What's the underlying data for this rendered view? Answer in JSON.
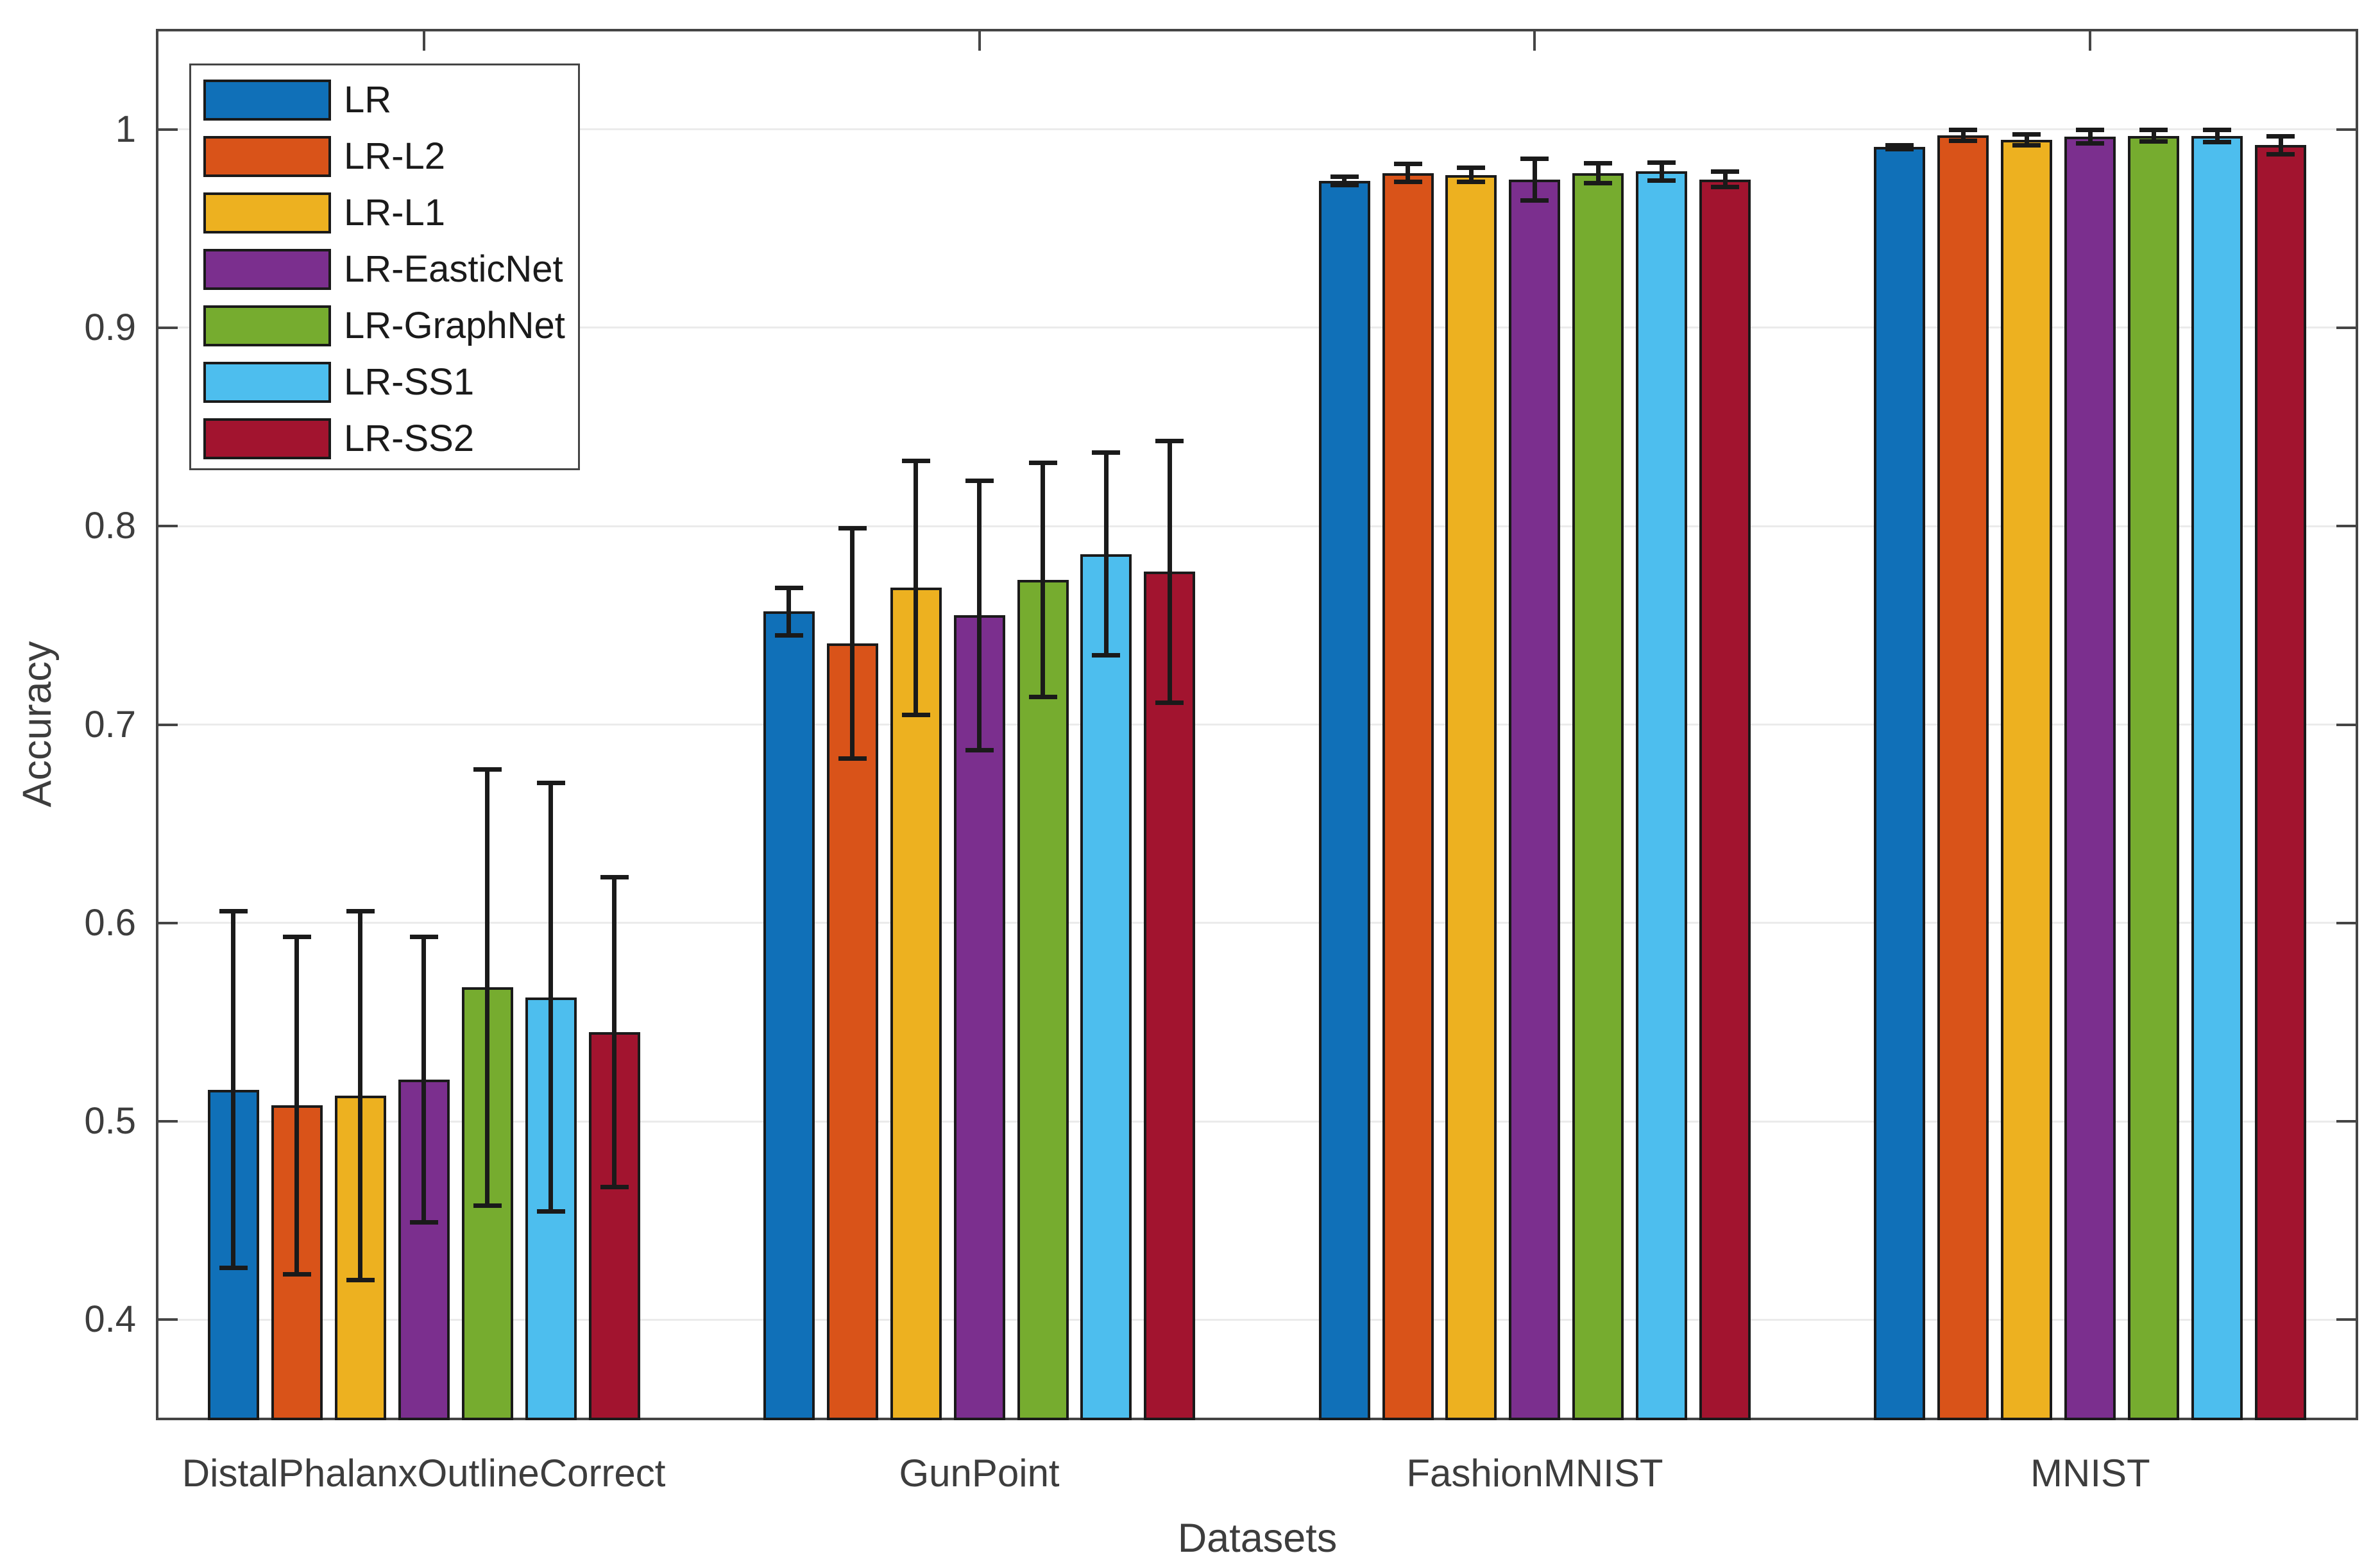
{
  "figure": {
    "background": "#ffffff",
    "axis_color": "#454545",
    "text_color": "#3d3d3d",
    "grid_color": "#ebebeb",
    "bar_edge_color": "#1a1a1a",
    "error_bar_color": "#1a1a1a",
    "legend_text_color": "#1a1a1a"
  },
  "chart_data": {
    "type": "bar",
    "title": "",
    "xlabel": "Datasets",
    "ylabel": "Accuracy",
    "categories": [
      "DistalPhalanxOutlineCorrect",
      "GunPoint",
      "FashionMNIST",
      "MNIST"
    ],
    "y_ticks": [
      {
        "value": 0.4,
        "label": "0.4"
      },
      {
        "value": 0.5,
        "label": "0.5"
      },
      {
        "value": 0.6,
        "label": "0.6"
      },
      {
        "value": 0.7,
        "label": "0.7"
      },
      {
        "value": 0.8,
        "label": "0.8"
      },
      {
        "value": 0.9,
        "label": "0.9"
      },
      {
        "value": 1.0,
        "label": "1"
      }
    ],
    "ylim": [
      0.35,
      1.05
    ],
    "grid": "horizontal",
    "legend_position": "top-left-inside",
    "error_bars": "symmetric",
    "series": [
      {
        "name": "LR",
        "color": "#1070b8",
        "values": [
          0.516,
          0.757,
          0.974,
          0.991
        ],
        "errors": [
          0.09,
          0.012,
          0.002,
          0.001
        ]
      },
      {
        "name": "LR-L2",
        "color": "#d95319",
        "values": [
          0.508,
          0.741,
          0.978,
          0.997
        ],
        "errors": [
          0.085,
          0.058,
          0.0045,
          0.0028
        ]
      },
      {
        "name": "LR-L1",
        "color": "#edb120",
        "values": [
          0.513,
          0.769,
          0.977,
          0.9946
        ],
        "errors": [
          0.093,
          0.064,
          0.0035,
          0.0027
        ]
      },
      {
        "name": "LR-EasticNet",
        "color": "#7b2f8e",
        "values": [
          0.521,
          0.755,
          0.9748,
          0.9963
        ],
        "errors": [
          0.072,
          0.068,
          0.0105,
          0.0033
        ]
      },
      {
        "name": "LR-GraphNet",
        "color": "#76ac2f",
        "values": [
          0.5675,
          0.773,
          0.978,
          0.9968
        ],
        "errors": [
          0.11,
          0.059,
          0.005,
          0.003
        ]
      },
      {
        "name": "LR-SS1",
        "color": "#4dbeee",
        "values": [
          0.5625,
          0.786,
          0.9788,
          0.9966
        ],
        "errors": [
          0.108,
          0.051,
          0.0045,
          0.003
        ]
      },
      {
        "name": "LR-SS2",
        "color": "#a2142f",
        "values": [
          0.545,
          0.777,
          0.9748,
          0.992
        ],
        "errors": [
          0.078,
          0.066,
          0.004,
          0.0045
        ]
      }
    ]
  }
}
